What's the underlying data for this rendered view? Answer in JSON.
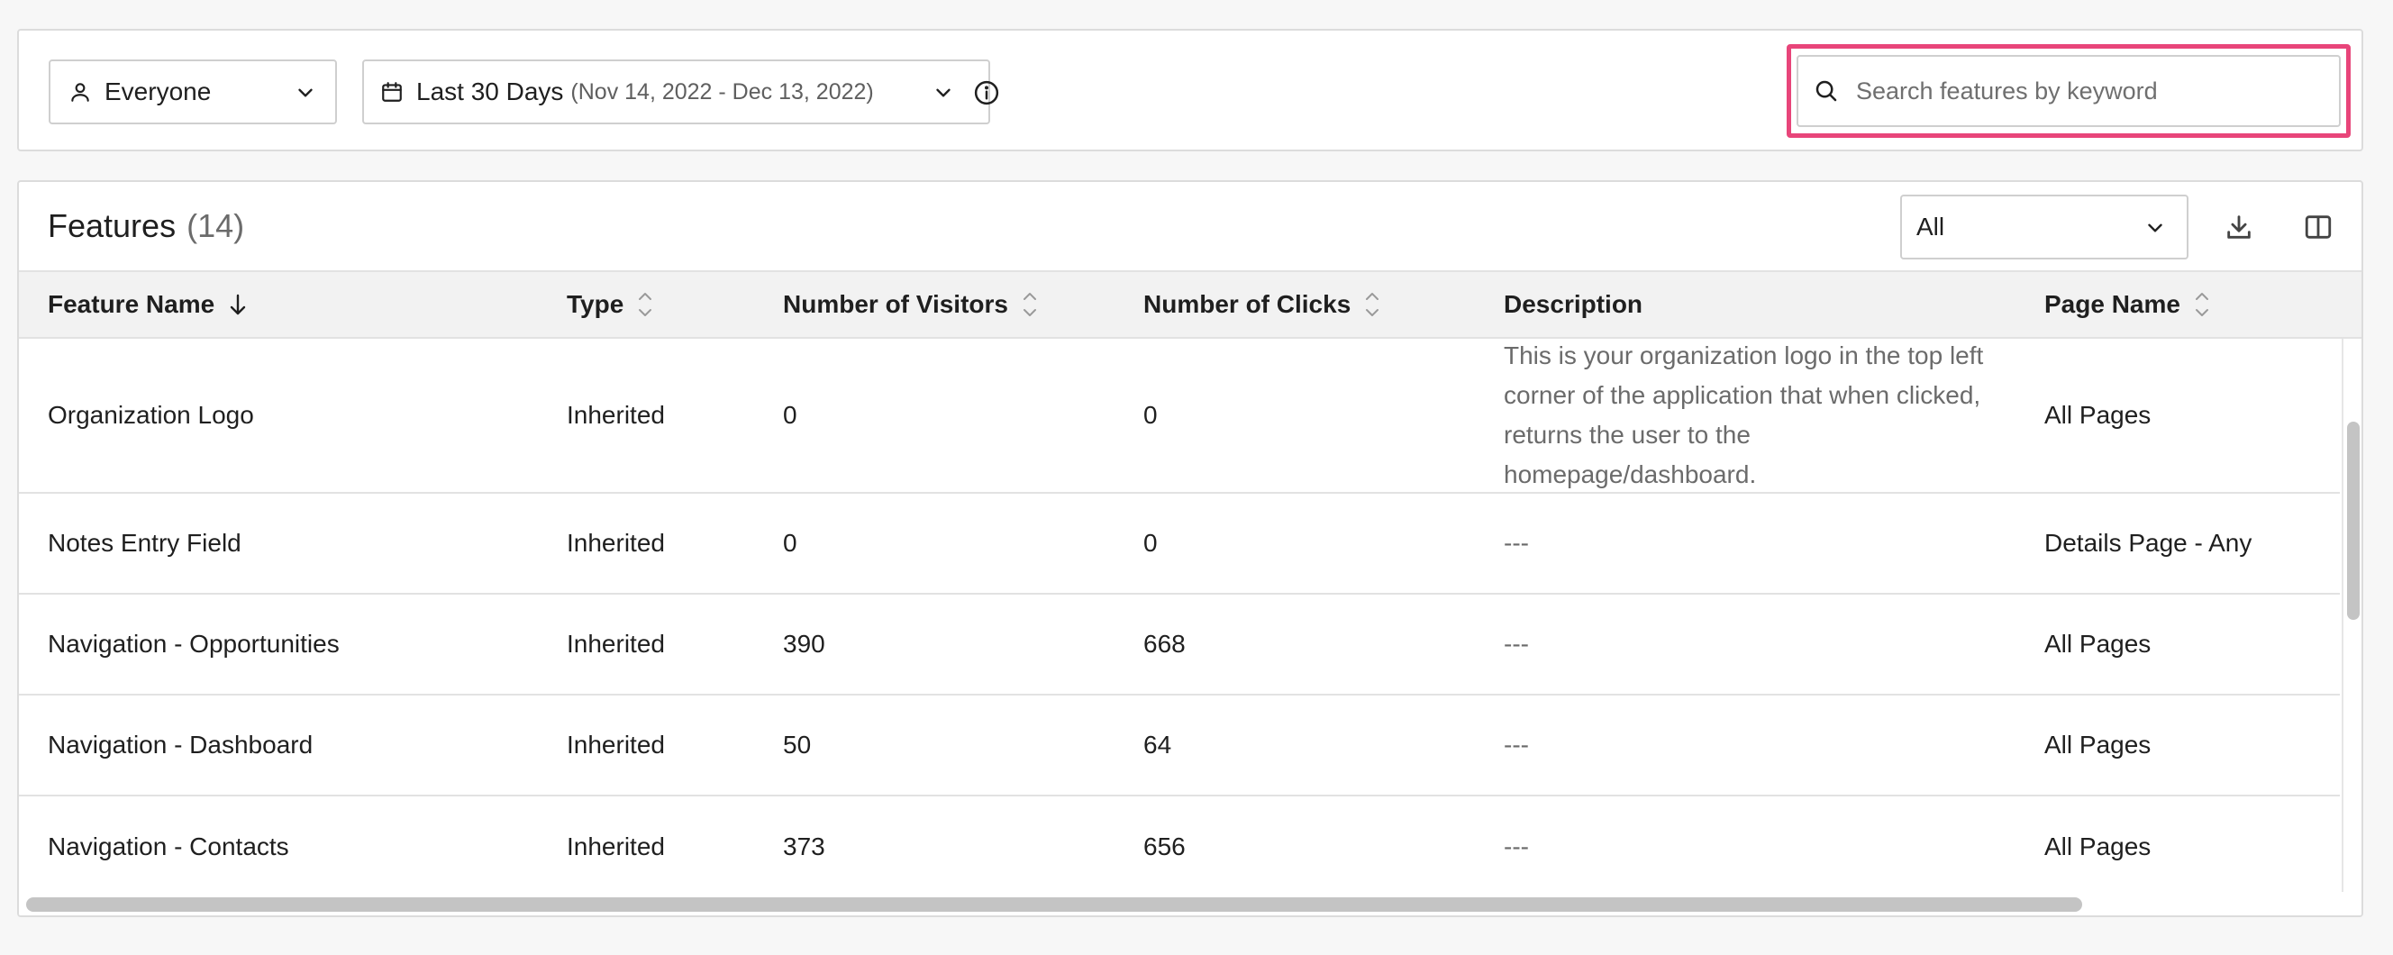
{
  "filters": {
    "segment": {
      "label": "Everyone"
    },
    "date": {
      "label": "Last 30 Days",
      "range": "(Nov 14, 2022 - Dec 13, 2022)"
    },
    "search": {
      "placeholder": "Search features by keyword",
      "value": ""
    }
  },
  "features_panel": {
    "title": "Features",
    "count": "(14)",
    "filter_select": {
      "value": "All"
    }
  },
  "table": {
    "columns": [
      {
        "label": "Feature Name",
        "sort": "desc"
      },
      {
        "label": "Type",
        "sort": "none"
      },
      {
        "label": "Number of Visitors",
        "sort": "none"
      },
      {
        "label": "Number of Clicks",
        "sort": "none"
      },
      {
        "label": "Description",
        "sort": ""
      },
      {
        "label": "Page Name",
        "sort": "none"
      }
    ],
    "rows": [
      {
        "name": "Organization Logo",
        "type": "Inherited",
        "visitors": "0",
        "clicks": "0",
        "description": "This is your organization logo in the top left corner of the application that when clicked, returns the user to the homepage/dashboard.",
        "page": "All Pages"
      },
      {
        "name": "Notes Entry Field",
        "type": "Inherited",
        "visitors": "0",
        "clicks": "0",
        "description": "---",
        "page": "Details Page - Any"
      },
      {
        "name": "Navigation - Opportunities",
        "type": "Inherited",
        "visitors": "390",
        "clicks": "668",
        "description": "---",
        "page": "All Pages"
      },
      {
        "name": "Navigation - Dashboard",
        "type": "Inherited",
        "visitors": "50",
        "clicks": "64",
        "description": "---",
        "page": "All Pages"
      },
      {
        "name": "Navigation - Contacts",
        "type": "Inherited",
        "visitors": "373",
        "clicks": "656",
        "description": "---",
        "page": "All Pages"
      }
    ]
  },
  "colors": {
    "highlight": "#e8457a",
    "header_bg": "#f2f2f2",
    "muted_text": "#6b6b6b"
  },
  "icons": {
    "segment": "person-icon",
    "date": "calendar-icon",
    "info": "info-icon",
    "search": "search-icon",
    "download": "download-icon",
    "columns": "columns-icon"
  }
}
